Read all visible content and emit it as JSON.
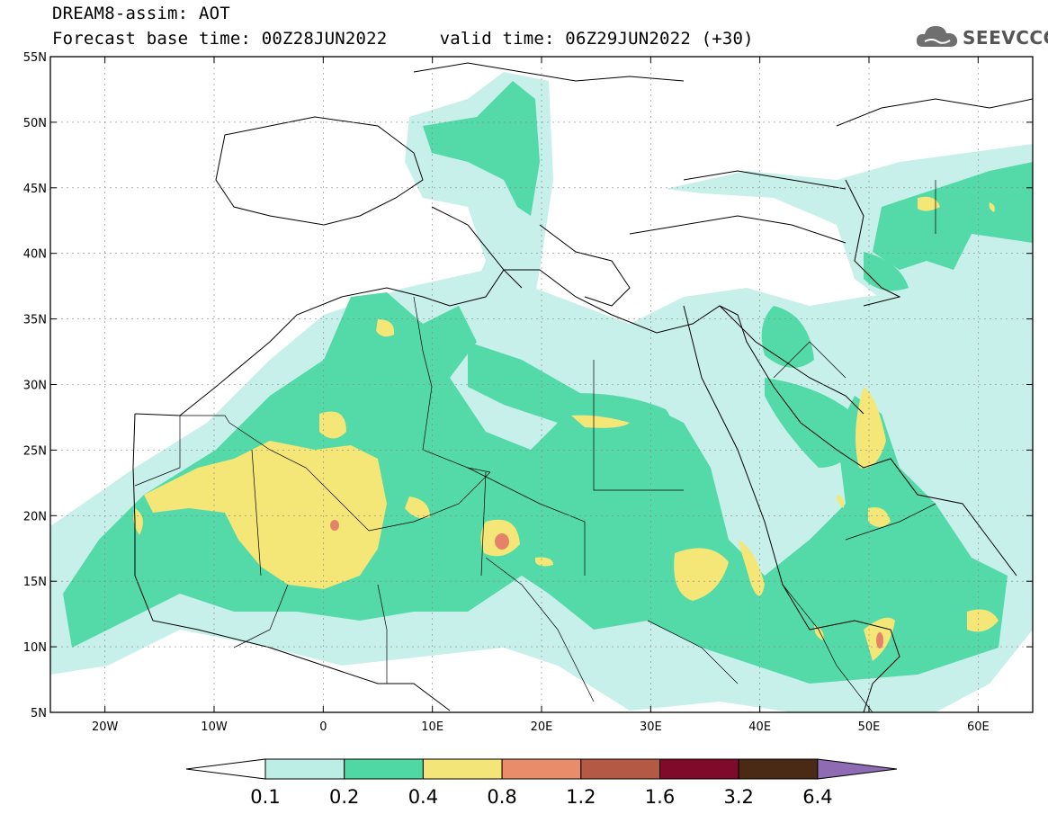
{
  "title": {
    "line1": "DREAM8-assim: AOT",
    "line2": "Forecast base time: 00Z28JUN2022     valid time: 06Z29JUN2022 (+30)"
  },
  "logo_text": "SEEVCCC",
  "logo_icon": "cloud-icon",
  "axes": {
    "x_ticks": [
      "20W",
      "10W",
      "0",
      "10E",
      "20E",
      "30E",
      "40E",
      "50E",
      "60E"
    ],
    "y_ticks": [
      "55N",
      "50N",
      "45N",
      "40N",
      "35N",
      "30N",
      "25N",
      "20N",
      "15N",
      "10N",
      "5N"
    ],
    "lon_range": [
      -25,
      65
    ],
    "lat_range": [
      5,
      55
    ]
  },
  "colorbar": {
    "labels": [
      "0.1",
      "0.2",
      "0.4",
      "0.8",
      "1.2",
      "1.6",
      "3.2",
      "6.4"
    ],
    "colors": [
      "#ffffff",
      "#bdeee6",
      "#4fd8a4",
      "#f3e577",
      "#e98c6a",
      "#b45944",
      "#800a2a",
      "#4a2915",
      "#8e6bb2"
    ]
  },
  "colors": {
    "level1": "#c7f0ea",
    "level2": "#54d9a8",
    "level3": "#f4e677",
    "level4": "#e5836a"
  }
}
